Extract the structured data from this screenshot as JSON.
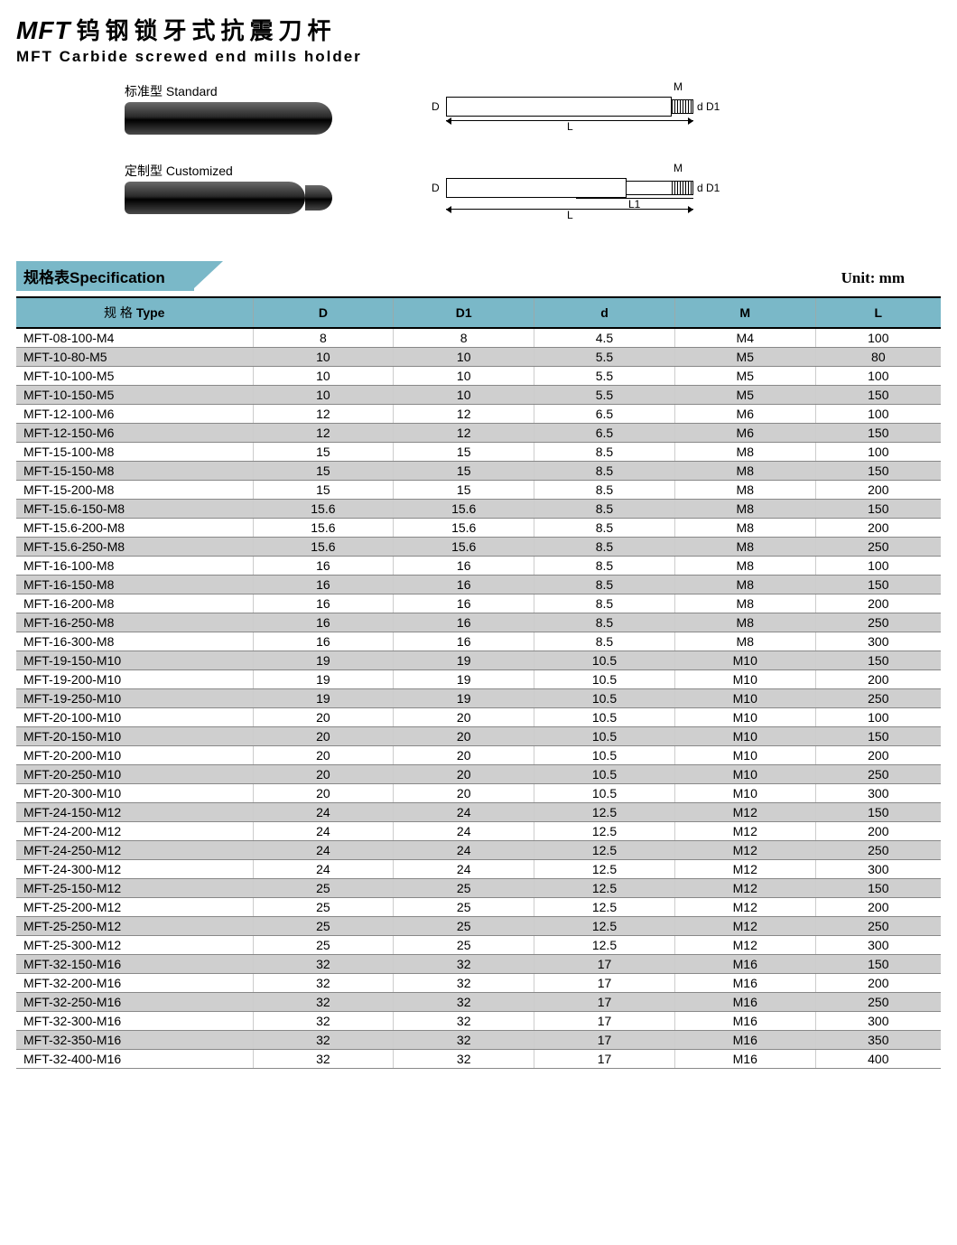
{
  "title": {
    "brand": "MFT",
    "cn": "钨钢锁牙式抗震刀杆",
    "en": "MFT Carbide screwed end mills holder"
  },
  "diagrams": {
    "standard_label": "标准型 Standard",
    "customized_label": "定制型 Customized",
    "labels": {
      "D": "D",
      "D1": "D1",
      "d": "d",
      "M": "M",
      "L": "L",
      "L1": "L1"
    }
  },
  "spec_header": {
    "tab": "规格表Specification",
    "unit": "Unit: mm",
    "columns": {
      "type_cn": "规 格",
      "type_en": "Type",
      "D": "D",
      "D1": "D1",
      "d": "d",
      "M": "M",
      "L": "L"
    }
  },
  "colors": {
    "header_bg": "#7ab8c8",
    "alt_row_bg": "#cfcfcf",
    "border": "#000000"
  },
  "rows": [
    {
      "type": "MFT-08-100-M4",
      "D": "8",
      "D1": "8",
      "d": "4.5",
      "M": "M4",
      "L": "100"
    },
    {
      "type": "MFT-10-80-M5",
      "D": "10",
      "D1": "10",
      "d": "5.5",
      "M": "M5",
      "L": "80"
    },
    {
      "type": "MFT-10-100-M5",
      "D": "10",
      "D1": "10",
      "d": "5.5",
      "M": "M5",
      "L": "100"
    },
    {
      "type": "MFT-10-150-M5",
      "D": "10",
      "D1": "10",
      "d": "5.5",
      "M": "M5",
      "L": "150"
    },
    {
      "type": "MFT-12-100-M6",
      "D": "12",
      "D1": "12",
      "d": "6.5",
      "M": "M6",
      "L": "100"
    },
    {
      "type": "MFT-12-150-M6",
      "D": "12",
      "D1": "12",
      "d": "6.5",
      "M": "M6",
      "L": "150"
    },
    {
      "type": "MFT-15-100-M8",
      "D": "15",
      "D1": "15",
      "d": "8.5",
      "M": "M8",
      "L": "100"
    },
    {
      "type": "MFT-15-150-M8",
      "D": "15",
      "D1": "15",
      "d": "8.5",
      "M": "M8",
      "L": "150"
    },
    {
      "type": "MFT-15-200-M8",
      "D": "15",
      "D1": "15",
      "d": "8.5",
      "M": "M8",
      "L": "200"
    },
    {
      "type": "MFT-15.6-150-M8",
      "D": "15.6",
      "D1": "15.6",
      "d": "8.5",
      "M": "M8",
      "L": "150"
    },
    {
      "type": "MFT-15.6-200-M8",
      "D": "15.6",
      "D1": "15.6",
      "d": "8.5",
      "M": "M8",
      "L": "200"
    },
    {
      "type": "MFT-15.6-250-M8",
      "D": "15.6",
      "D1": "15.6",
      "d": "8.5",
      "M": "M8",
      "L": "250"
    },
    {
      "type": "MFT-16-100-M8",
      "D": "16",
      "D1": "16",
      "d": "8.5",
      "M": "M8",
      "L": "100"
    },
    {
      "type": "MFT-16-150-M8",
      "D": "16",
      "D1": "16",
      "d": "8.5",
      "M": "M8",
      "L": "150"
    },
    {
      "type": "MFT-16-200-M8",
      "D": "16",
      "D1": "16",
      "d": "8.5",
      "M": "M8",
      "L": "200"
    },
    {
      "type": "MFT-16-250-M8",
      "D": "16",
      "D1": "16",
      "d": "8.5",
      "M": "M8",
      "L": "250"
    },
    {
      "type": "MFT-16-300-M8",
      "D": "16",
      "D1": "16",
      "d": "8.5",
      "M": "M8",
      "L": "300"
    },
    {
      "type": "MFT-19-150-M10",
      "D": "19",
      "D1": "19",
      "d": "10.5",
      "M": "M10",
      "L": "150"
    },
    {
      "type": "MFT-19-200-M10",
      "D": "19",
      "D1": "19",
      "d": "10.5",
      "M": "M10",
      "L": "200"
    },
    {
      "type": "MFT-19-250-M10",
      "D": "19",
      "D1": "19",
      "d": "10.5",
      "M": "M10",
      "L": "250"
    },
    {
      "type": "MFT-20-100-M10",
      "D": "20",
      "D1": "20",
      "d": "10.5",
      "M": "M10",
      "L": "100"
    },
    {
      "type": "MFT-20-150-M10",
      "D": "20",
      "D1": "20",
      "d": "10.5",
      "M": "M10",
      "L": "150"
    },
    {
      "type": "MFT-20-200-M10",
      "D": "20",
      "D1": "20",
      "d": "10.5",
      "M": "M10",
      "L": "200"
    },
    {
      "type": "MFT-20-250-M10",
      "D": "20",
      "D1": "20",
      "d": "10.5",
      "M": "M10",
      "L": "250"
    },
    {
      "type": "MFT-20-300-M10",
      "D": "20",
      "D1": "20",
      "d": "10.5",
      "M": "M10",
      "L": "300"
    },
    {
      "type": "MFT-24-150-M12",
      "D": "24",
      "D1": "24",
      "d": "12.5",
      "M": "M12",
      "L": "150"
    },
    {
      "type": "MFT-24-200-M12",
      "D": "24",
      "D1": "24",
      "d": "12.5",
      "M": "M12",
      "L": "200"
    },
    {
      "type": "MFT-24-250-M12",
      "D": "24",
      "D1": "24",
      "d": "12.5",
      "M": "M12",
      "L": "250"
    },
    {
      "type": "MFT-24-300-M12",
      "D": "24",
      "D1": "24",
      "d": "12.5",
      "M": "M12",
      "L": "300"
    },
    {
      "type": "MFT-25-150-M12",
      "D": "25",
      "D1": "25",
      "d": "12.5",
      "M": "M12",
      "L": "150"
    },
    {
      "type": "MFT-25-200-M12",
      "D": "25",
      "D1": "25",
      "d": "12.5",
      "M": "M12",
      "L": "200"
    },
    {
      "type": "MFT-25-250-M12",
      "D": "25",
      "D1": "25",
      "d": "12.5",
      "M": "M12",
      "L": "250"
    },
    {
      "type": "MFT-25-300-M12",
      "D": "25",
      "D1": "25",
      "d": "12.5",
      "M": "M12",
      "L": "300"
    },
    {
      "type": "MFT-32-150-M16",
      "D": "32",
      "D1": "32",
      "d": "17",
      "M": "M16",
      "L": "150"
    },
    {
      "type": "MFT-32-200-M16",
      "D": "32",
      "D1": "32",
      "d": "17",
      "M": "M16",
      "L": "200"
    },
    {
      "type": "MFT-32-250-M16",
      "D": "32",
      "D1": "32",
      "d": "17",
      "M": "M16",
      "L": "250"
    },
    {
      "type": "MFT-32-300-M16",
      "D": "32",
      "D1": "32",
      "d": "17",
      "M": "M16",
      "L": "300"
    },
    {
      "type": "MFT-32-350-M16",
      "D": "32",
      "D1": "32",
      "d": "17",
      "M": "M16",
      "L": "350"
    },
    {
      "type": "MFT-32-400-M16",
      "D": "32",
      "D1": "32",
      "d": "17",
      "M": "M16",
      "L": "400"
    }
  ]
}
